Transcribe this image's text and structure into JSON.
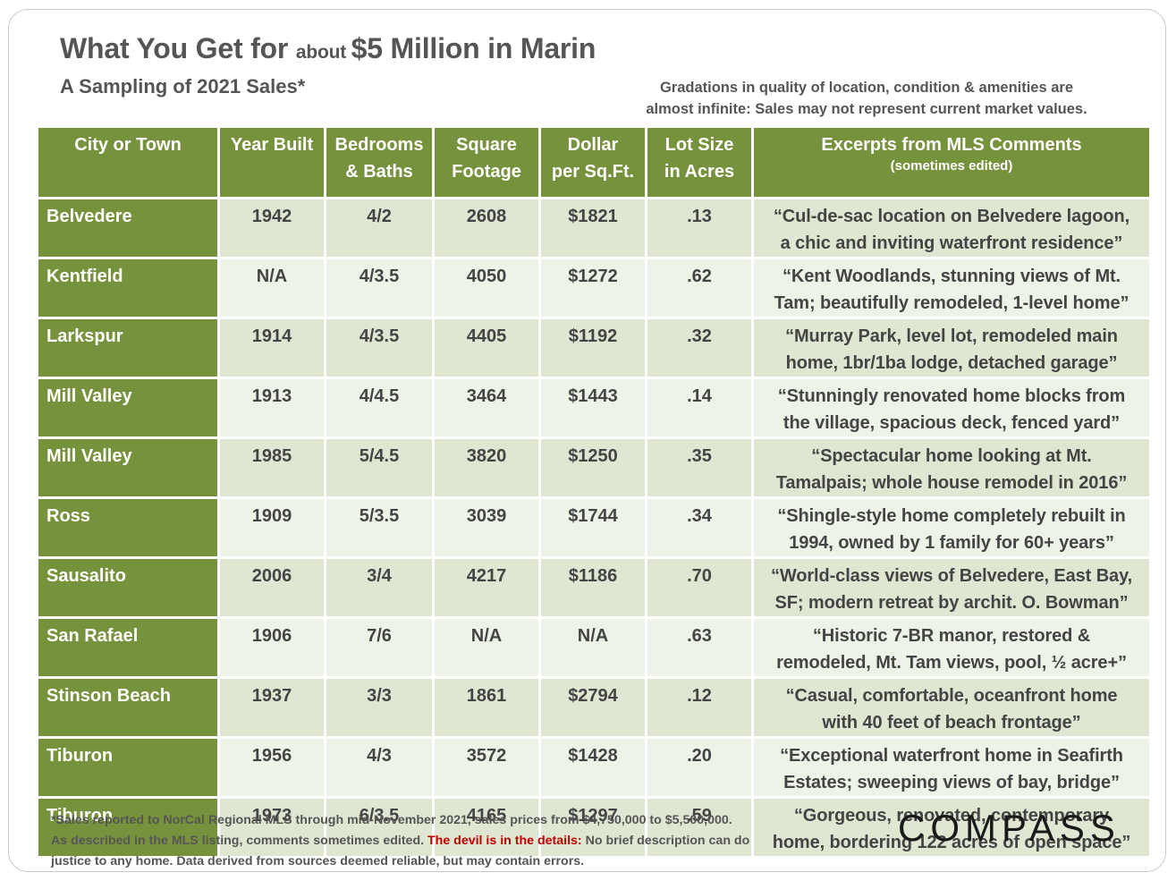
{
  "title_main": "What You Get for ",
  "title_small": "about ",
  "title_end": "$5 Million in Marin",
  "subtitle": "A Sampling of 2021 Sales*",
  "note_line1": "Gradations in quality of location, condition & amenities are",
  "note_line2": "almost infinite: Sales may not represent current market values.",
  "headers": {
    "city": "City or Town",
    "year": "Year Built",
    "beds_1": "Bedrooms",
    "beds_2": "& Baths",
    "sqft_1": "Square",
    "sqft_2": "Footage",
    "dollar_1": "Dollar",
    "dollar_2": "per Sq.Ft.",
    "lot_1": "Lot Size",
    "lot_2": "in Acres",
    "comments": "Excerpts from MLS Comments",
    "comments_sub": "(sometimes edited)"
  },
  "rows": [
    {
      "city": "Belvedere",
      "year": "1942",
      "beds": "4/2",
      "sqft": "2608",
      "dollar": "$1821",
      "lot": ".13",
      "c1": "“Cul-de-sac location on Belvedere lagoon,",
      "c2": "a chic and inviting waterfront residence”"
    },
    {
      "city": "Kentfield",
      "year": "N/A",
      "beds": "4/3.5",
      "sqft": "4050",
      "dollar": "$1272",
      "lot": ".62",
      "c1": "“Kent Woodlands, stunning views of Mt.",
      "c2": "Tam; beautifully remodeled, 1-level home”"
    },
    {
      "city": "Larkspur",
      "year": "1914",
      "beds": "4/3.5",
      "sqft": "4405",
      "dollar": "$1192",
      "lot": ".32",
      "c1": "“Murray Park, level lot, remodeled main",
      "c2": "home, 1br/1ba lodge, detached garage”"
    },
    {
      "city": "Mill Valley",
      "year": "1913",
      "beds": "4/4.5",
      "sqft": "3464",
      "dollar": "$1443",
      "lot": ".14",
      "c1": "“Stunningly renovated home blocks from",
      "c2": "the village, spacious deck, fenced yard”"
    },
    {
      "city": "Mill Valley",
      "year": "1985",
      "beds": "5/4.5",
      "sqft": "3820",
      "dollar": "$1250",
      "lot": ".35",
      "c1": "“Spectacular home looking at Mt.",
      "c2": "Tamalpais; whole house remodel in 2016”"
    },
    {
      "city": "Ross",
      "year": "1909",
      "beds": "5/3.5",
      "sqft": "3039",
      "dollar": "$1744",
      "lot": ".34",
      "c1": "“Shingle-style home completely rebuilt in",
      "c2": "1994, owned by 1 family for 60+ years”"
    },
    {
      "city": "Sausalito",
      "year": "2006",
      "beds": "3/4",
      "sqft": "4217",
      "dollar": "$1186",
      "lot": ".70",
      "c1": "“World-class views of Belvedere, East Bay,",
      "c2": "SF; modern retreat by archit. O. Bowman”"
    },
    {
      "city": "San Rafael",
      "year": "1906",
      "beds": "7/6",
      "sqft": "N/A",
      "dollar": "N/A",
      "lot": ".63",
      "c1": "“Historic 7-BR manor, restored &",
      "c2": "remodeled, Mt. Tam views, pool, ½ acre+”"
    },
    {
      "city": "Stinson Beach",
      "year": "1937",
      "beds": "3/3",
      "sqft": "1861",
      "dollar": "$2794",
      "lot": ".12",
      "c1": "“Casual, comfortable, oceanfront home",
      "c2": "with 40 feet of beach frontage”"
    },
    {
      "city": "Tiburon",
      "year": "1956",
      "beds": "4/3",
      "sqft": "3572",
      "dollar": "$1428",
      "lot": ".20",
      "c1": "“Exceptional waterfront home in Seafirth",
      "c2": "Estates; sweeping views of bay, bridge”"
    },
    {
      "city": "Tiburon",
      "year": "1973",
      "beds": "6/3.5",
      "sqft": "4165",
      "dollar": "$1297",
      "lot": ".59",
      "c1": "“Gorgeous, renovated, contemporary",
      "c2": "home, bordering 122 acres of open space”"
    }
  ],
  "footer_line1": "*Sales reported to NorCal Regional MLS through mid-November 2021, sales prices from $4,750,000 to $5,500,000.",
  "footer_line2a": "As described in the MLS listing, comments sometimes edited. ",
  "footer_line2_red": "The devil is in the details:",
  "footer_line2b": " No brief description can do",
  "footer_line3": "justice to any home. Data derived from sources deemed reliable, but may contain errors.",
  "logo": "COMPASS",
  "colors": {
    "header_green": "#77923c",
    "row_light": "#eef3e8",
    "row_dark": "#dfe7d3",
    "red": "#c00000"
  }
}
